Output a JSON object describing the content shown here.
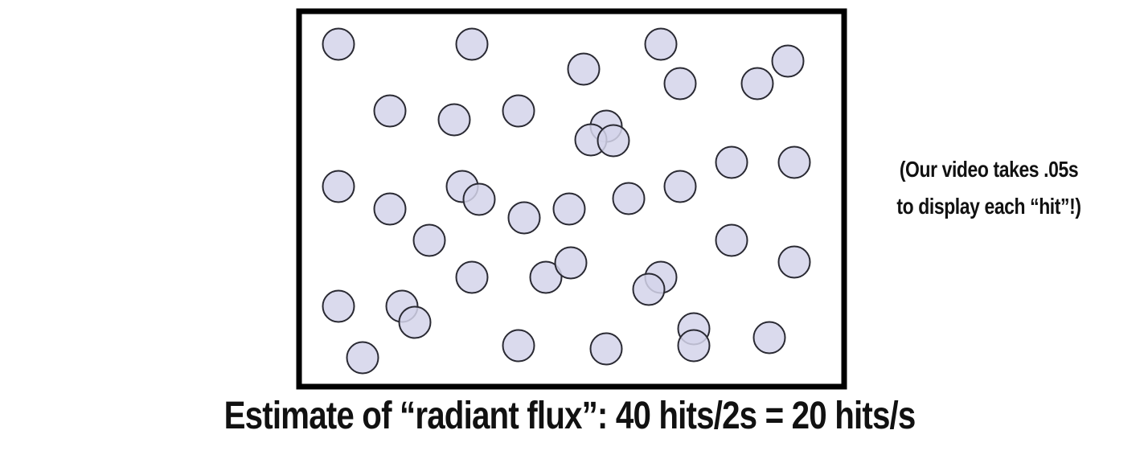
{
  "side_note": {
    "line1": "(Our video takes .05s",
    "line2": "to display each “hit”!)"
  },
  "caption": "Estimate of “radiant flux”: 40 hits/2s = 20 hits/s",
  "colors": {
    "frame": "#000000",
    "hit_fill": "#d3d3ea",
    "hit_stroke": "#2a2a33",
    "text": "#111111"
  }
}
